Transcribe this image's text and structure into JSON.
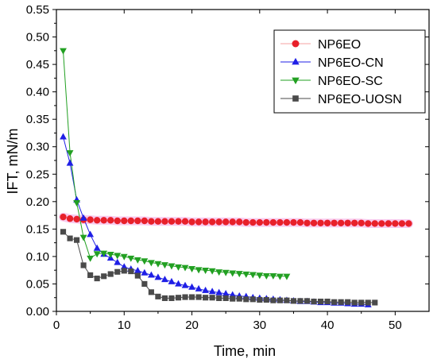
{
  "chart_data": {
    "type": "scatter",
    "xlabel": "Time, min",
    "ylabel": "IFT, mN/m",
    "xlim": [
      0,
      55
    ],
    "ylim": [
      0.0,
      0.55
    ],
    "x_ticks": [
      0,
      10,
      20,
      30,
      40,
      50
    ],
    "y_ticks": [
      0.0,
      0.05,
      0.1,
      0.15,
      0.2,
      0.25,
      0.3,
      0.35,
      0.4,
      0.45,
      0.5,
      0.55
    ],
    "grid": false,
    "legend_position": "top-right",
    "series": [
      {
        "name": "NP6EO",
        "marker": "circle",
        "color": "#e8202a",
        "line_color": "#f4a0a0",
        "shadow_color": "#f6b8e8",
        "x": [
          1,
          2,
          3,
          4,
          5,
          6,
          7,
          8,
          9,
          10,
          11,
          12,
          13,
          14,
          15,
          16,
          17,
          18,
          19,
          20,
          21,
          22,
          23,
          24,
          25,
          26,
          27,
          28,
          29,
          30,
          31,
          32,
          33,
          34,
          35,
          36,
          37,
          38,
          39,
          40,
          41,
          42,
          43,
          44,
          45,
          46,
          47,
          48,
          49,
          50,
          51,
          52
        ],
        "y": [
          0.172,
          0.169,
          0.168,
          0.167,
          0.167,
          0.166,
          0.166,
          0.166,
          0.165,
          0.165,
          0.165,
          0.165,
          0.165,
          0.164,
          0.164,
          0.164,
          0.164,
          0.164,
          0.164,
          0.163,
          0.163,
          0.163,
          0.163,
          0.163,
          0.163,
          0.163,
          0.163,
          0.162,
          0.162,
          0.162,
          0.162,
          0.162,
          0.162,
          0.162,
          0.162,
          0.162,
          0.161,
          0.161,
          0.161,
          0.161,
          0.161,
          0.161,
          0.161,
          0.161,
          0.161,
          0.16,
          0.16,
          0.16,
          0.16,
          0.16,
          0.16,
          0.16
        ]
      },
      {
        "name": "NP6EO-CN",
        "marker": "triangle-up",
        "color": "#1f1fe6",
        "line_color": "#1f1fe6",
        "x": [
          1,
          2,
          3,
          4,
          5,
          6,
          7,
          8,
          9,
          10,
          11,
          12,
          13,
          14,
          15,
          16,
          17,
          18,
          19,
          20,
          21,
          22,
          23,
          24,
          25,
          26,
          27,
          28,
          29,
          30,
          31,
          32,
          33,
          34,
          35,
          36,
          37,
          38,
          39,
          40,
          41,
          42,
          43,
          44,
          45,
          46
        ],
        "y": [
          0.318,
          0.27,
          0.203,
          0.17,
          0.14,
          0.115,
          0.104,
          0.097,
          0.089,
          0.081,
          0.077,
          0.074,
          0.07,
          0.066,
          0.062,
          0.058,
          0.054,
          0.05,
          0.047,
          0.044,
          0.041,
          0.038,
          0.036,
          0.034,
          0.032,
          0.03,
          0.028,
          0.027,
          0.025,
          0.024,
          0.023,
          0.022,
          0.021,
          0.02,
          0.019,
          0.018,
          0.018,
          0.017,
          0.016,
          0.016,
          0.015,
          0.015,
          0.014,
          0.013,
          0.013,
          0.012
        ]
      },
      {
        "name": "NP6EO-SC",
        "marker": "triangle-down",
        "color": "#22a022",
        "line_color": "#22a022",
        "x": [
          1,
          2,
          3,
          4,
          5,
          6,
          7,
          8,
          9,
          10,
          11,
          12,
          13,
          14,
          15,
          16,
          17,
          18,
          19,
          20,
          21,
          22,
          23,
          24,
          25,
          26,
          27,
          28,
          29,
          30,
          31,
          32,
          33,
          34
        ],
        "y": [
          0.475,
          0.289,
          0.198,
          0.135,
          0.097,
          0.105,
          0.106,
          0.104,
          0.102,
          0.1,
          0.097,
          0.094,
          0.092,
          0.089,
          0.087,
          0.085,
          0.083,
          0.081,
          0.08,
          0.078,
          0.076,
          0.075,
          0.074,
          0.072,
          0.071,
          0.07,
          0.069,
          0.068,
          0.067,
          0.066,
          0.065,
          0.065,
          0.064,
          0.064
        ]
      },
      {
        "name": "NP6EO-UOSN",
        "marker": "square",
        "color": "#4a4a4a",
        "line_color": "#4a4a4a",
        "x": [
          1,
          2,
          3,
          4,
          5,
          6,
          7,
          8,
          9,
          10,
          11,
          12,
          13,
          14,
          15,
          16,
          17,
          18,
          19,
          20,
          21,
          22,
          23,
          24,
          25,
          26,
          27,
          28,
          29,
          30,
          31,
          32,
          33,
          34,
          35,
          36,
          37,
          38,
          39,
          40,
          41,
          42,
          43,
          44,
          45,
          46,
          47
        ],
        "y": [
          0.145,
          0.133,
          0.13,
          0.084,
          0.066,
          0.06,
          0.064,
          0.068,
          0.072,
          0.074,
          0.073,
          0.065,
          0.05,
          0.035,
          0.027,
          0.024,
          0.024,
          0.025,
          0.026,
          0.026,
          0.026,
          0.025,
          0.025,
          0.024,
          0.024,
          0.023,
          0.023,
          0.022,
          0.022,
          0.021,
          0.021,
          0.02,
          0.02,
          0.02,
          0.019,
          0.019,
          0.019,
          0.018,
          0.018,
          0.018,
          0.017,
          0.017,
          0.017,
          0.016,
          0.016,
          0.016,
          0.016
        ]
      }
    ]
  }
}
